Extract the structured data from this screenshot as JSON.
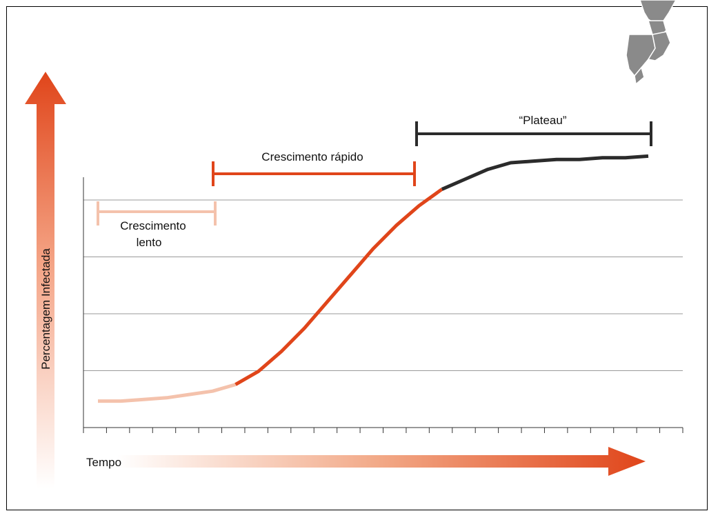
{
  "chart_data": {
    "type": "line",
    "title": "",
    "xlabel": "Tempo",
    "ylabel": "Percentagem Infectada",
    "grid": true,
    "phases": [
      {
        "name": "Crescimento lento",
        "line1": "Crescimento",
        "line2": "lento",
        "color": "#f4c2ac"
      },
      {
        "name": "Crescimento rápido",
        "color": "#e0451a"
      },
      {
        "name": "“Plateau”",
        "color": "#2b2b2b"
      }
    ],
    "series": [
      {
        "values": [
          0.08,
          0.08,
          0.085,
          0.09,
          0.1,
          0.11,
          0.13,
          0.17,
          0.23,
          0.3,
          0.38,
          0.46,
          0.54,
          0.61,
          0.67,
          0.72,
          0.75,
          0.78,
          0.8,
          0.805,
          0.81,
          0.81,
          0.815,
          0.815,
          0.82
        ]
      }
    ],
    "phase_boundaries": [
      6,
      15
    ]
  },
  "colors": {
    "slow": "#f4c2ac",
    "fast": "#e0451a",
    "plateau": "#2b2b2b",
    "arrow": "#e0451a"
  },
  "decoration": {
    "map_icon": "map-silhouette-icon"
  }
}
